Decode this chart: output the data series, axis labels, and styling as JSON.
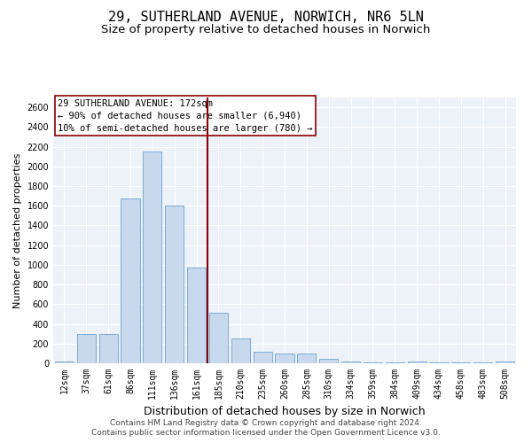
{
  "title_line1": "29, SUTHERLAND AVENUE, NORWICH, NR6 5LN",
  "title_line2": "Size of property relative to detached houses in Norwich",
  "xlabel": "Distribution of detached houses by size in Norwich",
  "ylabel": "Number of detached properties",
  "categories": [
    "12sqm",
    "37sqm",
    "61sqm",
    "86sqm",
    "111sqm",
    "136sqm",
    "161sqm",
    "185sqm",
    "210sqm",
    "235sqm",
    "260sqm",
    "285sqm",
    "310sqm",
    "334sqm",
    "359sqm",
    "384sqm",
    "409sqm",
    "434sqm",
    "458sqm",
    "483sqm",
    "508sqm"
  ],
  "values": [
    20,
    295,
    295,
    1675,
    2150,
    1600,
    975,
    510,
    250,
    120,
    100,
    100,
    45,
    20,
    10,
    5,
    20,
    5,
    5,
    5,
    20
  ],
  "bar_color": "#c8d9ee",
  "bar_edge_color": "#7aacd6",
  "vline_index": 7,
  "vline_color": "#8b0000",
  "annotation_text": "29 SUTHERLAND AVENUE: 172sqm\n← 90% of detached houses are smaller (6,940)\n10% of semi-detached houses are larger (780) →",
  "annotation_box_edgecolor": "#8b0000",
  "ylim": [
    0,
    2700
  ],
  "yticks": [
    0,
    200,
    400,
    600,
    800,
    1000,
    1200,
    1400,
    1600,
    1800,
    2000,
    2200,
    2400,
    2600
  ],
  "footnote1": "Contains HM Land Registry data © Crown copyright and database right 2024.",
  "footnote2": "Contains public sector information licensed under the Open Government Licence v3.0.",
  "bg_color": "#edf2f9",
  "grid_color": "#ffffff",
  "title_fontsize": 11,
  "subtitle_fontsize": 9.5,
  "ylabel_fontsize": 8,
  "xlabel_fontsize": 9,
  "tick_fontsize": 7,
  "annotation_fontsize": 7.5,
  "footnote_fontsize": 6.5
}
